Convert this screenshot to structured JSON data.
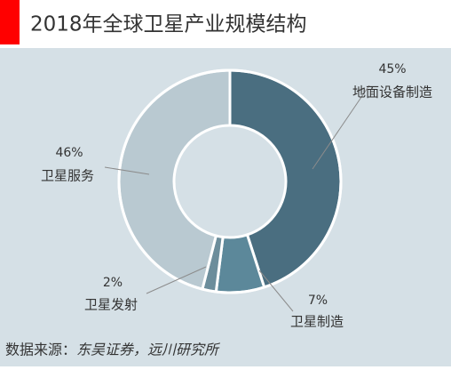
{
  "chart_data": {
    "type": "pie",
    "title": "2018年全球卫星产业规模结构",
    "categories": [
      "地面设备制造",
      "卫星制造",
      "卫星发射",
      "卫星服务"
    ],
    "values": [
      45,
      7,
      2,
      46
    ],
    "value_labels": [
      "45%",
      "7%",
      "2%",
      "46%"
    ],
    "colors": [
      "#4a6e80",
      "#5c889a",
      "#6c8d9b",
      "#b9c9d1"
    ],
    "source_label": "数据来源：",
    "source_text": "东吴证券，远川研究所"
  }
}
